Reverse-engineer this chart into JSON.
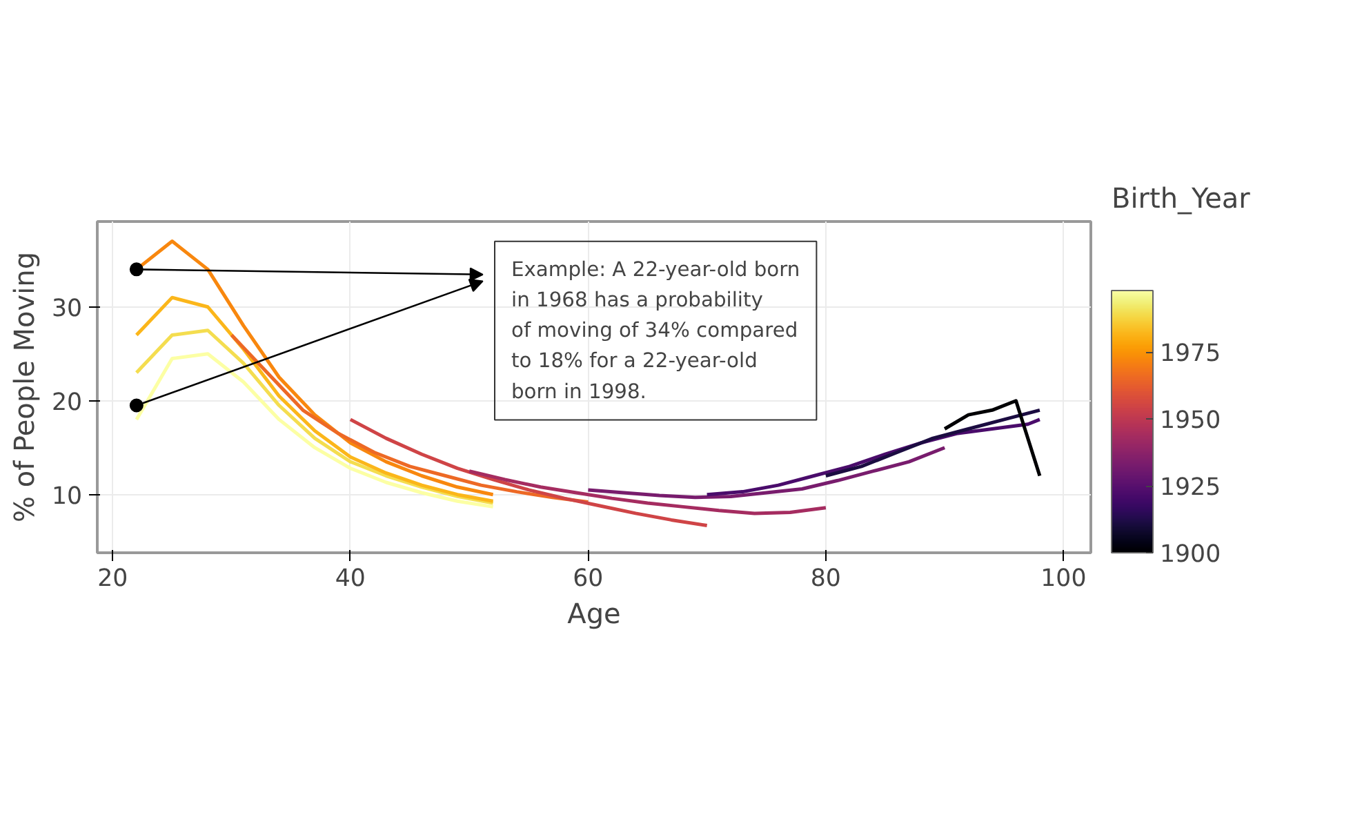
{
  "chart_data": {
    "type": "line",
    "xlabel": "Age",
    "ylabel": "% of People Moving",
    "clabel": "Birth_Year",
    "clim": [
      1900,
      1998
    ],
    "cticks": [
      1900,
      1925,
      1950,
      1975
    ],
    "xlim": [
      18.7,
      102.3
    ],
    "ylim": [
      3.8,
      39.1
    ],
    "xticks": [
      20,
      40,
      60,
      80,
      100
    ],
    "yticks": [
      10,
      20,
      30
    ],
    "grid": true,
    "line_style": "solid",
    "annotations": [
      "Example: A 22-year-old born in 1968 has a probability of moving of 34% compared to 18% for a 22-year-old born in 1998."
    ],
    "series": [
      {
        "color": "#fcffa4",
        "x": [
          22,
          25,
          28,
          31,
          34,
          37,
          40,
          43,
          46,
          49,
          52
        ],
        "values": [
          18,
          24.5,
          25,
          22,
          18,
          15,
          12.8,
          11.3,
          10.2,
          9.3,
          8.7
        ]
      },
      {
        "color": "#f4dd4f",
        "x": [
          22,
          25,
          28,
          31,
          34,
          37,
          40,
          43,
          46,
          49,
          52
        ],
        "values": [
          23,
          27,
          27.5,
          24,
          19.5,
          16,
          13.5,
          12,
          10.8,
          9.8,
          9.1
        ]
      },
      {
        "color": "#fbb61a",
        "x": [
          22,
          25,
          28,
          31,
          34,
          37,
          40,
          43,
          46,
          49,
          52
        ],
        "values": [
          27,
          31,
          30,
          25.5,
          20.5,
          16.8,
          14,
          12.3,
          11,
          10,
          9.3
        ]
      },
      {
        "color": "#f8870e",
        "x": [
          22,
          25,
          28,
          31,
          34,
          37,
          40,
          43,
          46,
          49,
          52
        ],
        "values": [
          34,
          37,
          34,
          28,
          22.5,
          18.5,
          15.5,
          13.5,
          12,
          10.8,
          10
        ]
      },
      {
        "color": "#ed6925",
        "x": [
          30,
          33,
          36,
          39,
          42,
          45,
          48,
          51,
          54,
          57,
          60
        ],
        "values": [
          27,
          23,
          19,
          16.5,
          14.5,
          13,
          12,
          11,
          10.3,
          9.7,
          9.2
        ]
      },
      {
        "color": "#cf4446",
        "x": [
          40,
          43,
          46,
          49,
          52,
          55,
          58,
          61,
          64,
          67,
          70
        ],
        "values": [
          18,
          16,
          14.3,
          12.8,
          11.6,
          10.5,
          9.6,
          8.8,
          8,
          7.3,
          6.7
        ]
      },
      {
        "color": "#a52c60",
        "x": [
          50,
          53,
          56,
          59,
          62,
          65,
          68,
          71,
          74,
          77,
          80
        ],
        "values": [
          12.5,
          11.6,
          10.8,
          10.2,
          9.6,
          9.1,
          8.7,
          8.3,
          8,
          8.1,
          8.6
        ]
      },
      {
        "color": "#781c6d",
        "x": [
          60,
          63,
          66,
          69,
          72,
          75,
          78,
          81,
          84,
          87,
          90
        ],
        "values": [
          10.5,
          10.2,
          9.9,
          9.7,
          9.8,
          10.2,
          10.6,
          11.5,
          12.5,
          13.5,
          15
        ]
      },
      {
        "color": "#4a0c6b",
        "x": [
          70,
          73,
          76,
          79,
          82,
          85,
          88,
          91,
          94,
          97,
          98
        ],
        "values": [
          10,
          10.3,
          11,
          12,
          13,
          14.3,
          15.5,
          16.5,
          17,
          17.5,
          18
        ]
      },
      {
        "color": "#1b0c41",
        "x": [
          80,
          83,
          86,
          89,
          92,
          95,
          98
        ],
        "values": [
          12,
          13,
          14.5,
          16,
          17,
          18,
          19
        ]
      },
      {
        "color": "#000004",
        "x": [
          90,
          92,
          94,
          96,
          98
        ],
        "values": [
          17,
          18.5,
          19,
          20,
          12
        ]
      },
      {
        "type": "scatter",
        "marker": "circle",
        "color": "#000000",
        "x": [
          22,
          22
        ],
        "values": [
          34,
          19.5
        ]
      }
    ]
  }
}
